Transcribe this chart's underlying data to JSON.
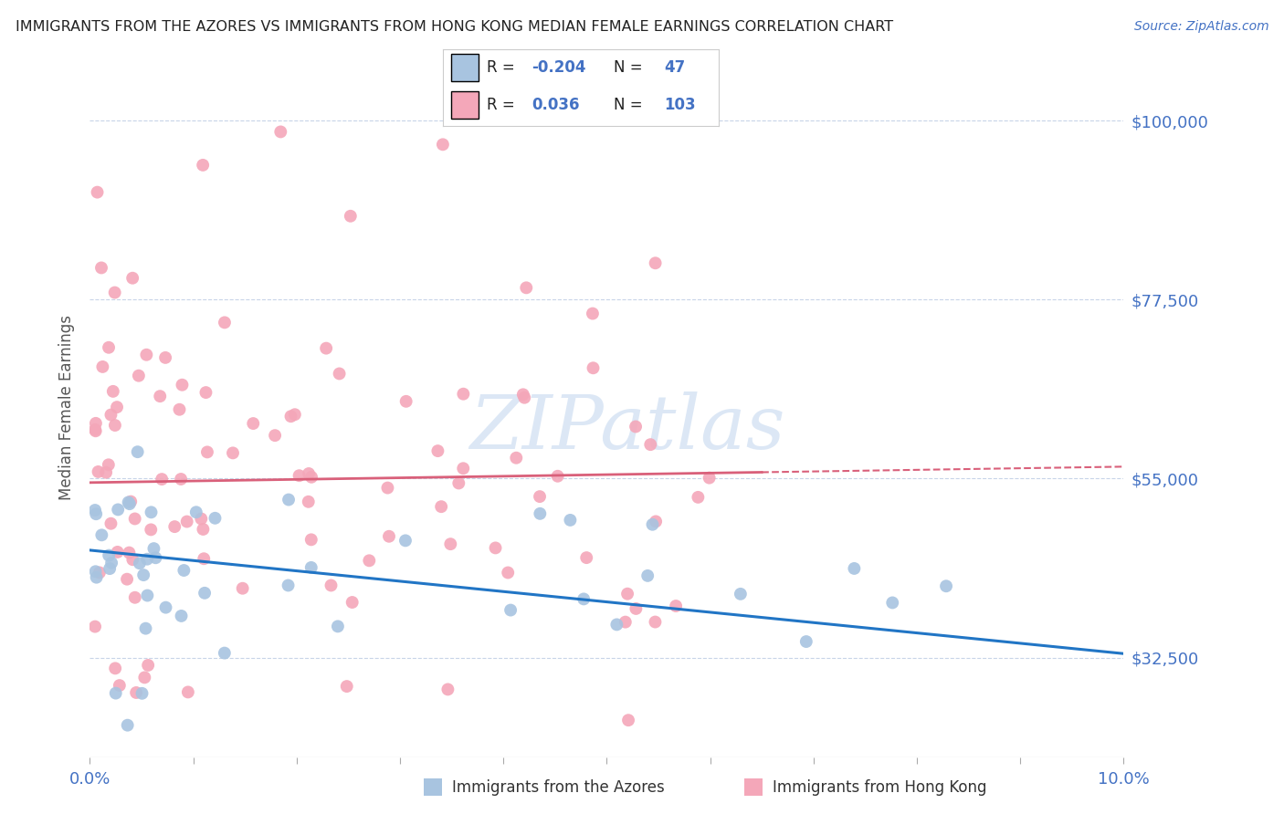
{
  "title": "IMMIGRANTS FROM THE AZORES VS IMMIGRANTS FROM HONG KONG MEDIAN FEMALE EARNINGS CORRELATION CHART",
  "source": "Source: ZipAtlas.com",
  "ylabel": "Median Female Earnings",
  "yticks": [
    32500,
    55000,
    77500,
    100000
  ],
  "ytick_labels": [
    "$32,500",
    "$55,000",
    "$77,500",
    "$100,000"
  ],
  "xlim": [
    0.0,
    0.1
  ],
  "ylim": [
    20000,
    108000
  ],
  "legend": {
    "azores_R": "-0.204",
    "azores_N": "47",
    "hk_R": "0.036",
    "hk_N": "103"
  },
  "azores_color": "#a8c4e0",
  "hk_color": "#f4a7b9",
  "azores_line_color": "#2175c5",
  "hk_line_color": "#d9607a",
  "background_color": "#ffffff",
  "grid_color": "#c8d4e8",
  "axis_label_color": "#4472c4",
  "title_color": "#222222",
  "watermark_color": "#c5d8ef",
  "watermark_text": "ZIPatlas"
}
